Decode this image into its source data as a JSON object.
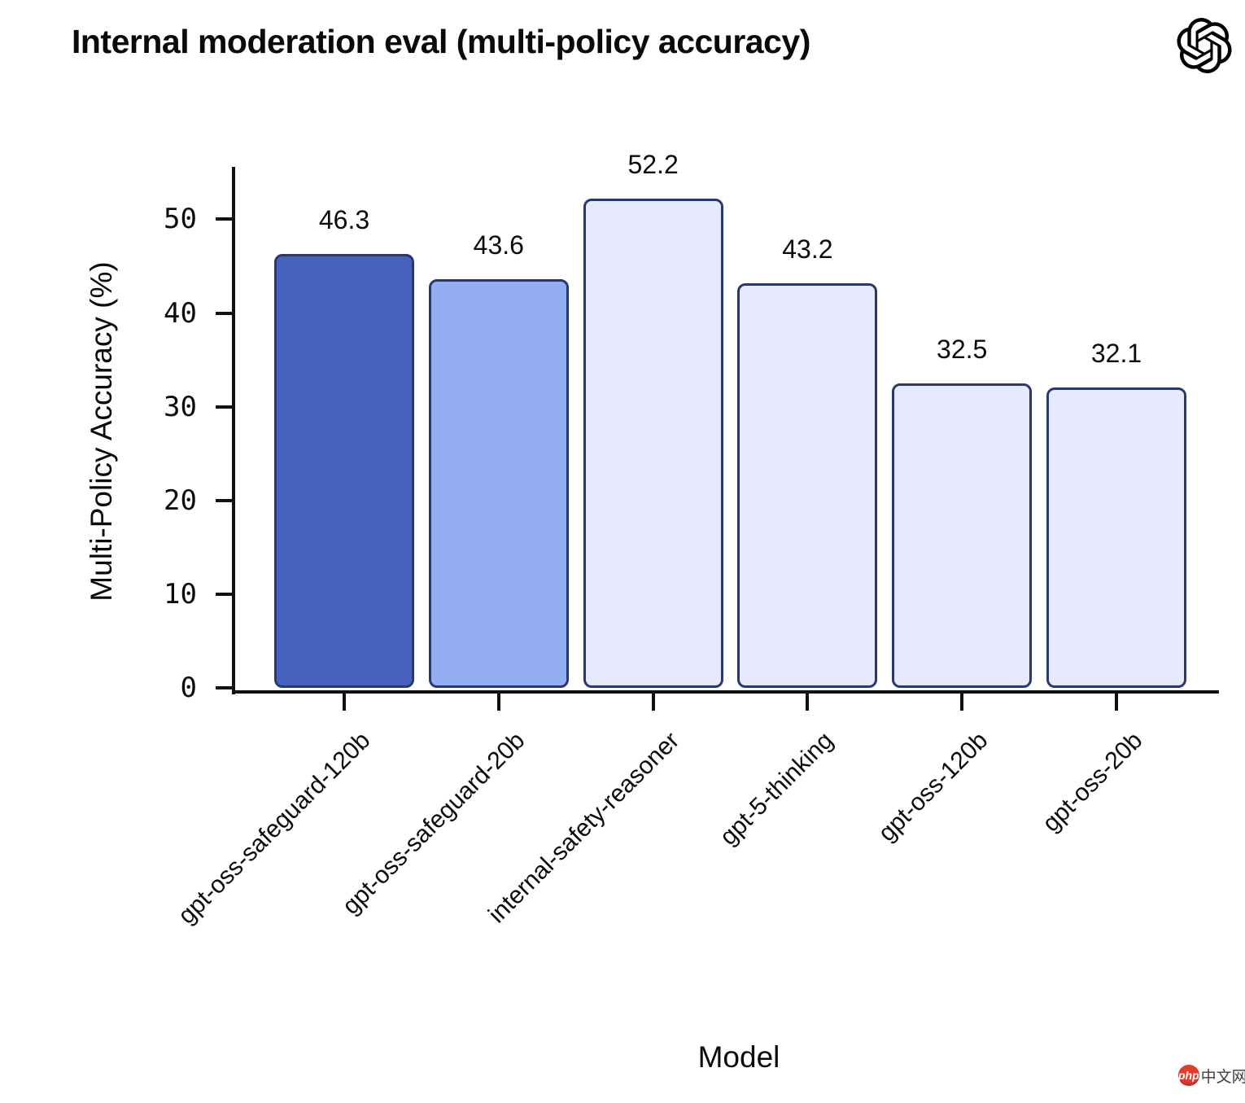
{
  "header": {
    "title": "Internal moderation eval (multi-policy accuracy)",
    "logo": "openai-logo"
  },
  "chart_data": {
    "type": "bar",
    "title": "Internal moderation eval (multi-policy accuracy)",
    "xlabel": "Model",
    "ylabel": "Multi-Policy Accuracy (%)",
    "categories": [
      "gpt-oss-safeguard-120b",
      "gpt-oss-safeguard-20b",
      "internal-safety-reasoner",
      "gpt-5-thinking",
      "gpt-oss-120b",
      "gpt-oss-20b"
    ],
    "values": [
      46.3,
      43.6,
      52.2,
      43.2,
      32.5,
      32.1
    ],
    "value_labels": [
      "46.3",
      "43.6",
      "52.2",
      "43.2",
      "32.5",
      "32.1"
    ],
    "yticks": [
      0,
      10,
      20,
      30,
      40,
      50
    ],
    "ylim": [
      0,
      55.6
    ],
    "grid": false,
    "legend": null,
    "bar_colors": [
      "#4662BC",
      "#94AEF4",
      "#E6EAFC",
      "#E6EAFC",
      "#E6EAFC",
      "#E6EAFC"
    ],
    "bar_border_color": "#283A6C",
    "axis_color": "#111111"
  },
  "watermark": {
    "badge_text": "php",
    "site_text": "中文网",
    "badge_color": "#e63c30"
  }
}
